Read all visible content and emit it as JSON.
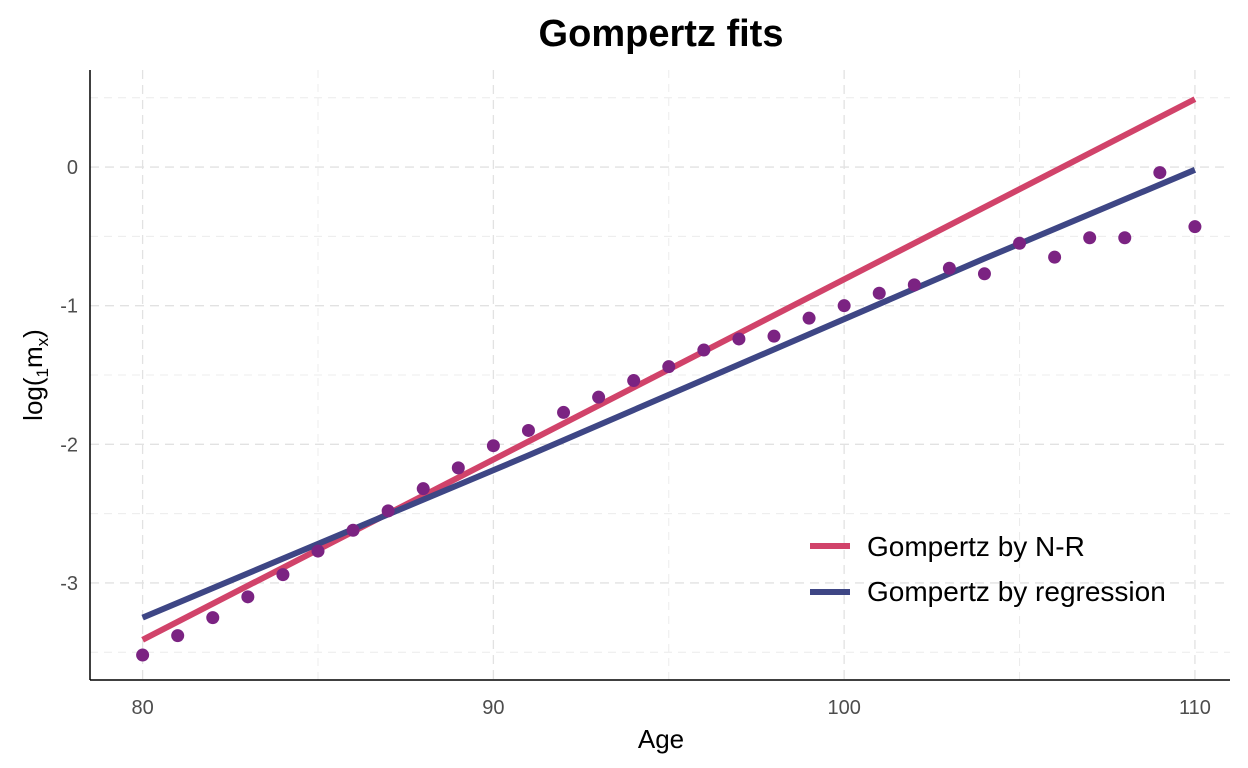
{
  "chart_data": {
    "type": "line",
    "title": "Gompertz fits",
    "xlabel": "Age",
    "ylabel": {
      "base": "log(",
      "pre_sub": "1",
      "main": "m",
      "post_sub": "x",
      "close": ")"
    },
    "xlim": [
      78.5,
      111
    ],
    "ylim": [
      -3.7,
      0.7
    ],
    "x_ticks": [
      80,
      90,
      100,
      110
    ],
    "y_ticks": [
      0,
      -1,
      -2,
      -3
    ],
    "x_tick_labels": [
      "80",
      "90",
      "100",
      "110"
    ],
    "y_tick_labels": [
      "0",
      "-1",
      "-2",
      "-3"
    ],
    "grid": true,
    "legend_position": "bottom-right",
    "points": {
      "color": "#7b2382",
      "x": [
        80,
        81,
        82,
        83,
        84,
        85,
        86,
        87,
        88,
        89,
        90,
        91,
        92,
        93,
        94,
        95,
        96,
        97,
        98,
        99,
        100,
        101,
        102,
        103,
        104,
        105,
        106,
        107,
        108,
        109,
        110
      ],
      "y": [
        -3.52,
        -3.38,
        -3.25,
        -3.1,
        -2.94,
        -2.77,
        -2.62,
        -2.48,
        -2.32,
        -2.17,
        -2.01,
        -1.9,
        -1.77,
        -1.66,
        -1.54,
        -1.44,
        -1.32,
        -1.24,
        -1.22,
        -1.09,
        -1.0,
        -0.91,
        -0.85,
        -0.73,
        -0.77,
        -0.55,
        -0.65,
        -0.51,
        -0.51,
        -0.04,
        -0.43
      ]
    },
    "series": [
      {
        "name": "Gompertz by N-R",
        "color": "#d1436a",
        "x": [
          80,
          110
        ],
        "y": [
          -3.41,
          0.49
        ]
      },
      {
        "name": "Gompertz by regression",
        "color": "#3e4685",
        "x": [
          80,
          91,
          104,
          110
        ],
        "y": [
          -3.25,
          -2.08,
          -0.66,
          -0.02
        ]
      }
    ]
  }
}
